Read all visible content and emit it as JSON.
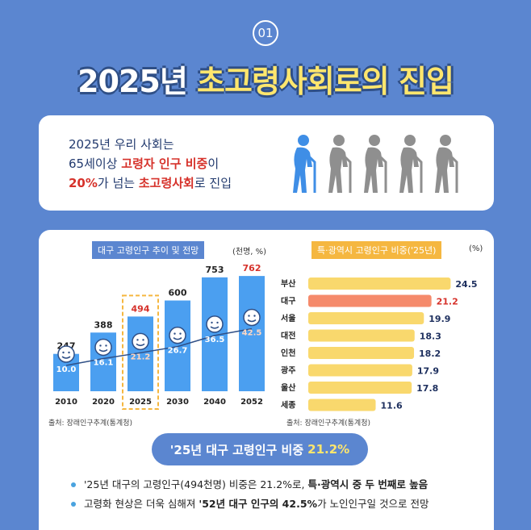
{
  "badge": "01",
  "title": {
    "part1": "2025년",
    "part2": "초고령사회로의 진입"
  },
  "intro": {
    "line1": "2025년 우리 사회는",
    "line2_pre": "65세이상 ",
    "line2_red": "고령자 인구 비중",
    "line2_post": "이",
    "line3_red1": "20%",
    "line3_mid": "가 넘는 ",
    "line3_red2": "초고령사회",
    "line3_post": "로 진입"
  },
  "icons": {
    "highlight_color": "#3f8ee6",
    "gray_color": "#8f8f8f",
    "figures": [
      "person-cane-icon",
      "person-cane-icon",
      "person-cane-icon",
      "person-cane-icon",
      "person-cane-icon"
    ]
  },
  "left_chart": {
    "label": "대구 고령인구 추이 및 전망",
    "unit": "(천명, %)",
    "source": "출처: 장래인구추계(통계청)"
  },
  "right_chart": {
    "label": "특·광역시 고령인구 비중('25년)",
    "unit": "(%)",
    "source": "출처: 장래인구추계(통계청)"
  },
  "chart_data": [
    {
      "type": "bar",
      "categories": [
        "2010",
        "2020",
        "2025",
        "2030",
        "2040",
        "2052"
      ],
      "series": [
        {
          "values": [
            247,
            388,
            494,
            600,
            753,
            762
          ]
        },
        {
          "values": [
            10.0,
            16.1,
            21.2,
            26.7,
            36.5,
            42.5
          ]
        }
      ],
      "highlight": "2025",
      "ylim": [
        0,
        800
      ]
    },
    {
      "type": "bar",
      "categories": [
        "부산",
        "대구",
        "서울",
        "대전",
        "인천",
        "광주",
        "울산",
        "세종"
      ],
      "values": [
        24.5,
        21.2,
        19.9,
        18.3,
        18.2,
        17.9,
        17.8,
        11.6
      ],
      "highlight": "대구",
      "xlim": [
        0,
        25
      ]
    }
  ],
  "highlight_pill": {
    "text": "'25년 대구 고령인구 비중",
    "value": "21.2%"
  },
  "bullets": [
    {
      "pre": "'25년 대구의 고령인구(494천명) 비중은 21.2%로, ",
      "bold": "특·광역시 중 두 번째로 높음",
      "post": ""
    },
    {
      "pre": "고령화 현상은 더욱 심해져 ",
      "bold": "'52년 대구 인구의 42.5%",
      "post": "가 노인인구일 것으로 전망"
    }
  ],
  "colors": {
    "background": "#5b86d0",
    "bar_blue": "#4b9ff0",
    "bar_yellow": "#f9d86d",
    "bar_orange": "#f58a6b",
    "accent_red": "#d6322b",
    "title_yellow": "#ffe66d"
  }
}
